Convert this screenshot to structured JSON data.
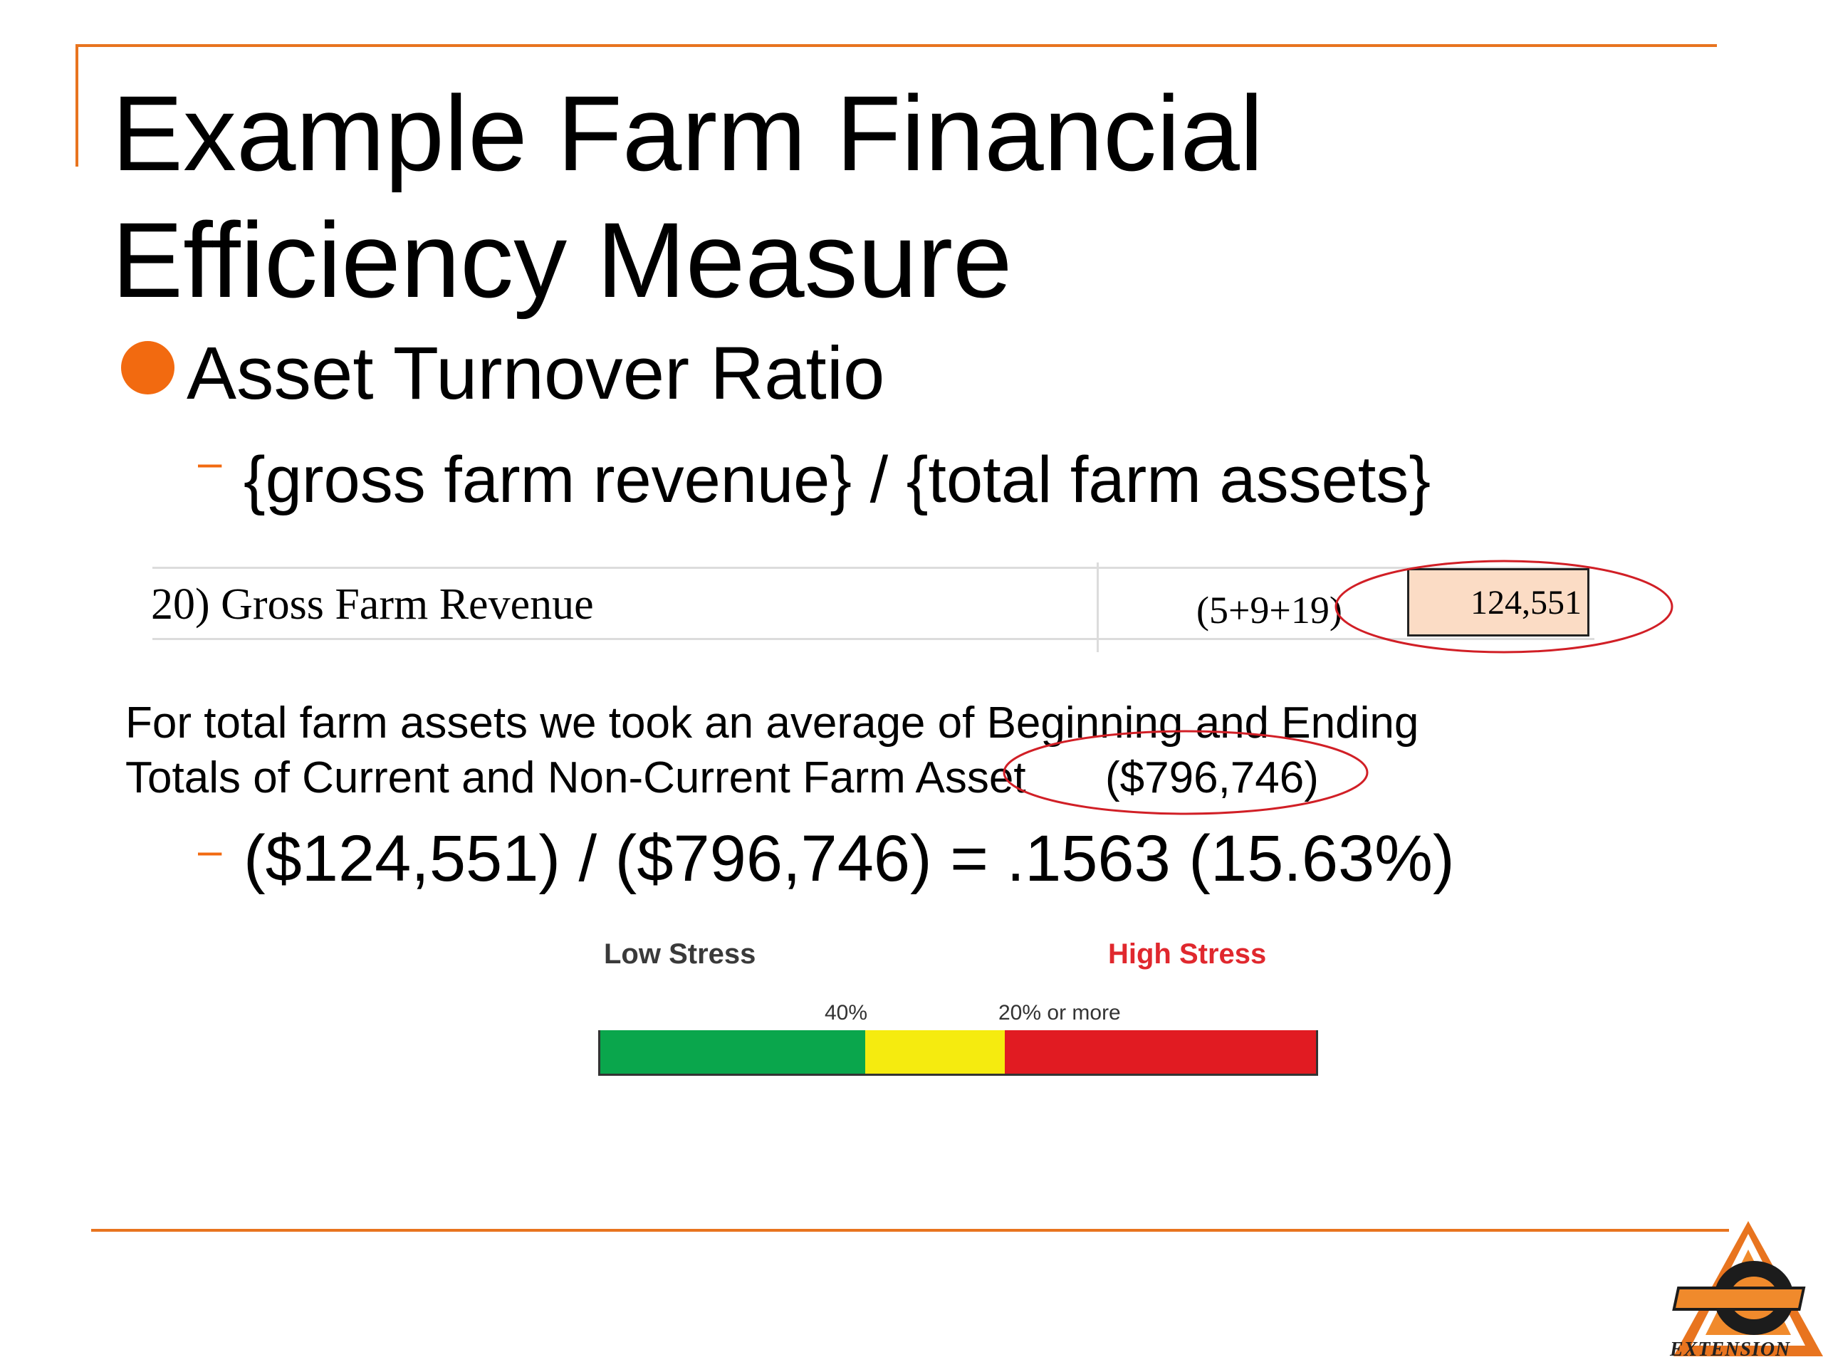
{
  "title": {
    "line1": "Example Farm Financial",
    "line2": "Efficiency Measure"
  },
  "bullet": {
    "text": "Asset Turnover Ratio",
    "sub1": "{gross farm revenue} / {total farm assets}"
  },
  "worksheet_row": {
    "label": "20) Gross Farm Revenue",
    "formula": "(5+9+19)",
    "value": "124,551"
  },
  "explanation": {
    "line1": "For total farm assets we took an average of Beginning and Ending",
    "line2": "Totals of Current and Non-Current Farm Asset",
    "amount": "($796,746)"
  },
  "calculation": "($124,551) / ($796,746)  =  .1563 (15.63%)",
  "stress_scale": {
    "low_label": "Low Stress",
    "high_label": "High Stress",
    "tick_1": "40%",
    "tick_2": "20% or more",
    "segments": [
      {
        "name": "low",
        "color": "#0aa64c",
        "fraction": 0.37
      },
      {
        "name": "moderate",
        "color": "#f5eb0f",
        "fraction": 0.195
      },
      {
        "name": "high",
        "color": "#e11b22",
        "fraction": 0.435
      }
    ]
  },
  "colors": {
    "accent": "#e8741f",
    "highlight_circle": "#d11f26",
    "high_stress_text": "#e0282e",
    "low_stress_text": "#3a3a3a"
  },
  "logo": {
    "icon": "osu-extension-logo",
    "extension_text": "EXTENSION"
  }
}
